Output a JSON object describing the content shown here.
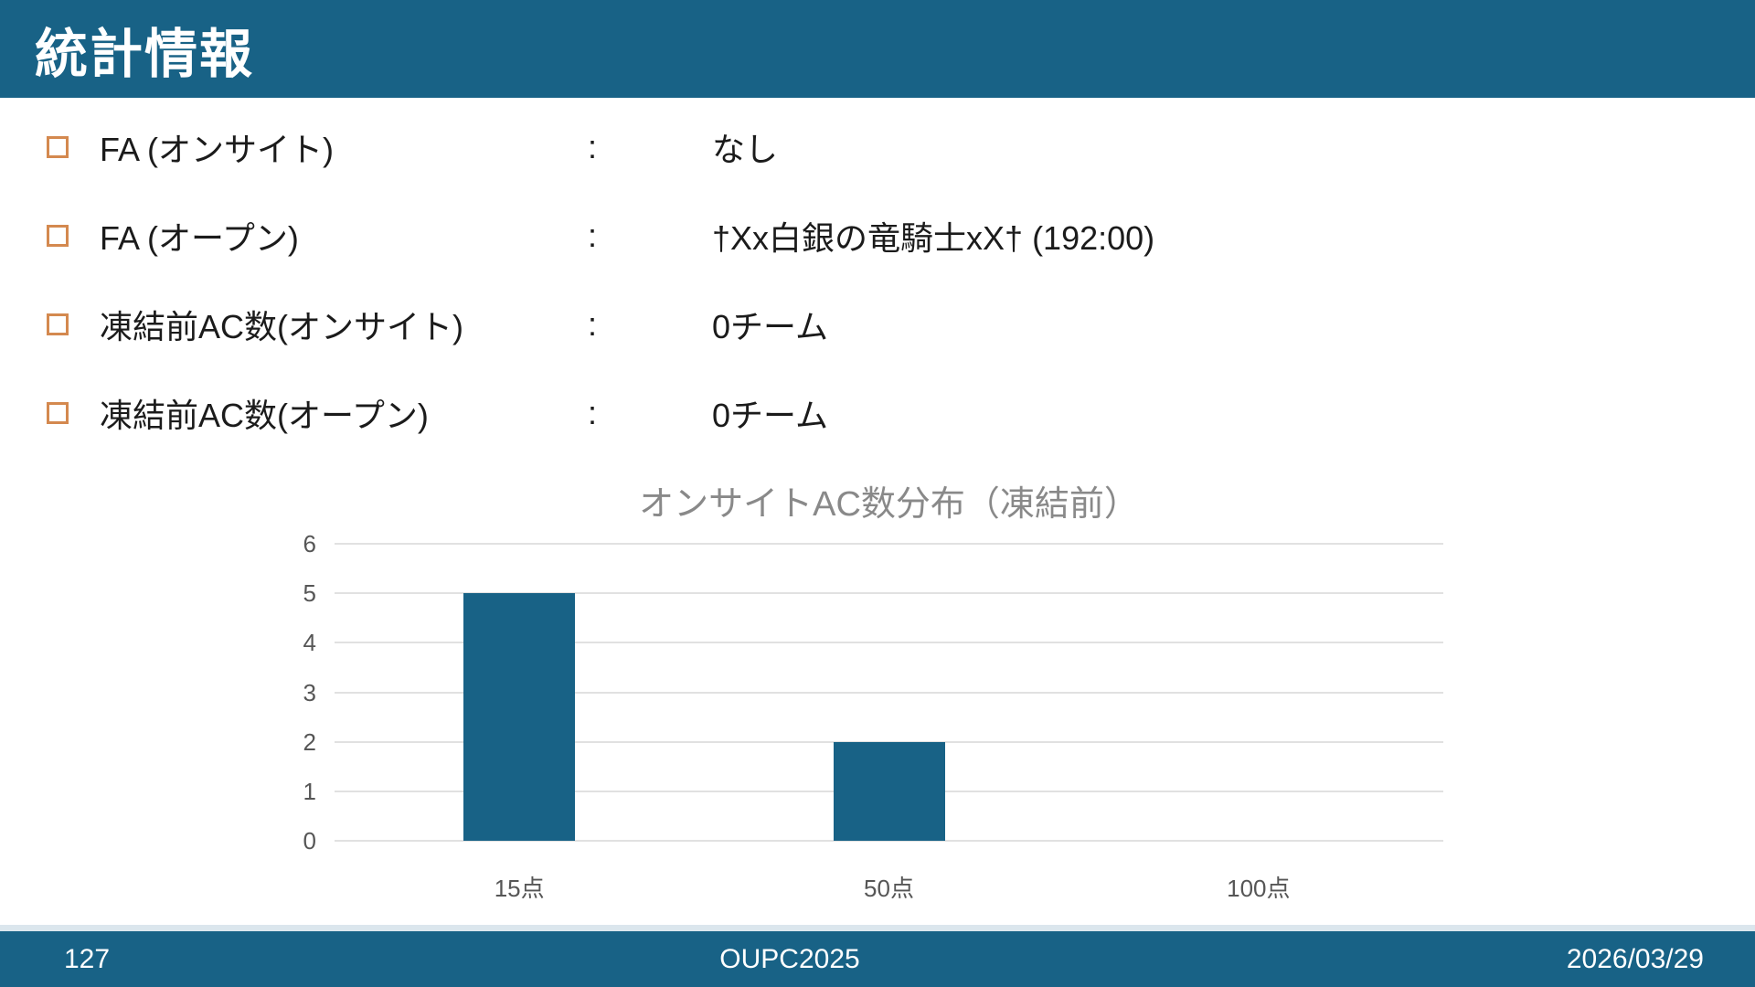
{
  "theme": {
    "accent": "#186286",
    "bullet_color": "#d4894f",
    "footer_strip": "#dbe6ed",
    "text_color": "#1b1b1b"
  },
  "header": {
    "title": "統計情報"
  },
  "stats": {
    "rows": [
      {
        "label": "FA (オンサイト)",
        "separator": ":",
        "value": "なし"
      },
      {
        "label": "FA (オープン)",
        "separator": ":",
        "value": "†Xx白銀の竜騎士xX† (192:00)"
      },
      {
        "label": "凍結前AC数(オンサイト)",
        "separator": ":",
        "value": "0チーム"
      },
      {
        "label": "凍結前AC数(オープン)",
        "separator": ":",
        "value": "0チーム"
      }
    ]
  },
  "chart_data": {
    "type": "bar",
    "title": "オンサイトAC数分布（凍結前）",
    "categories": [
      "15点",
      "50点",
      "100点"
    ],
    "values": [
      5,
      2,
      0
    ],
    "xlabel": "",
    "ylabel": "",
    "ylim": [
      0,
      6
    ],
    "ytick_step": 1,
    "grid": true,
    "legend": "none",
    "bar_color": "#186286",
    "gridline_color": "#e1e1e1",
    "title_color": "#898989",
    "tick_color": "#565656"
  },
  "footer": {
    "page": "127",
    "center": "OUPC2025",
    "date": "2026/03/29"
  }
}
